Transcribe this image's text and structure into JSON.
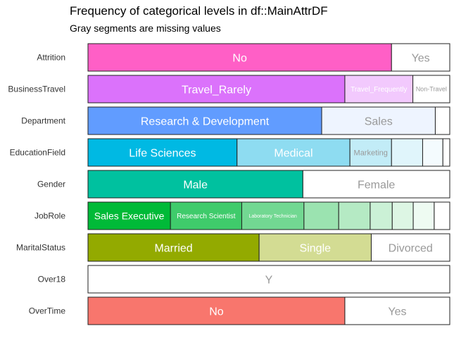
{
  "chart_data": {
    "type": "bar",
    "subtype": "stacked-horizontal-100",
    "title": "Frequency of categorical levels in df::MainAttrDF",
    "subtitle": "Gray segments are missing values",
    "xlabel": "",
    "ylabel": "",
    "xlim": [
      0,
      1
    ],
    "grid": false,
    "legend": "none",
    "series": [
      {
        "variable": "Attrition",
        "levels": [
          {
            "label": "No",
            "share": 0.839,
            "color": "#ff5fc6",
            "text_color": "#ffffff"
          },
          {
            "label": "Yes",
            "share": 0.161,
            "color": "#ffffff",
            "text_color": "#999999"
          }
        ]
      },
      {
        "variable": "BusinessTravel",
        "levels": [
          {
            "label": "Travel_Rarely",
            "share": 0.71,
            "color": "#db72fb",
            "text_color": "#ffffff"
          },
          {
            "label": "Travel_Frequently",
            "share": 0.188,
            "color": "#f2c9fd",
            "text_color": "#ffffff"
          },
          {
            "label": "Non-Travel",
            "share": 0.102,
            "color": "#ffffff",
            "text_color": "#999999"
          }
        ]
      },
      {
        "variable": "Department",
        "levels": [
          {
            "label": "Research & Development",
            "share": 0.646,
            "color": "#619cff",
            "text_color": "#ffffff"
          },
          {
            "label": "Sales",
            "share": 0.314,
            "color": "#eef4ff",
            "text_color": "#999999"
          },
          {
            "label": "",
            "share": 0.04,
            "color": "#ffffff",
            "text_color": "#999999"
          }
        ]
      },
      {
        "variable": "EducationField",
        "levels": [
          {
            "label": "Life Sciences",
            "share": 0.412,
            "color": "#00b9e3",
            "text_color": "#ffffff"
          },
          {
            "label": "Medical",
            "share": 0.312,
            "color": "#8edcf1",
            "text_color": "#ffffff"
          },
          {
            "label": "Marketing",
            "share": 0.115,
            "color": "#c2ecf7",
            "text_color": "#999999"
          },
          {
            "label": "",
            "share": 0.086,
            "color": "#e0f5fb",
            "text_color": "#999999"
          },
          {
            "label": "",
            "share": 0.056,
            "color": "#f4fbfe",
            "text_color": "#999999"
          },
          {
            "label": "",
            "share": 0.019,
            "color": "#ffffff",
            "text_color": "#999999"
          }
        ]
      },
      {
        "variable": "Gender",
        "levels": [
          {
            "label": "Male",
            "share": 0.594,
            "color": "#00c19f",
            "text_color": "#ffffff"
          },
          {
            "label": "Female",
            "share": 0.406,
            "color": "#ffffff",
            "text_color": "#999999"
          }
        ]
      },
      {
        "variable": "JobRole",
        "levels": [
          {
            "label": "Sales Executive",
            "share": 0.228,
            "color": "#00ba38",
            "text_color": "#ffffff"
          },
          {
            "label": "Research Scientist",
            "share": 0.197,
            "color": "#3fcb6b",
            "text_color": "#ffffff"
          },
          {
            "label": "Laboratory Technician",
            "share": 0.172,
            "color": "#72d892",
            "text_color": "#ffffff"
          },
          {
            "label": "",
            "share": 0.096,
            "color": "#9be3b0",
            "text_color": "#999999"
          },
          {
            "label": "",
            "share": 0.087,
            "color": "#b5eac4",
            "text_color": "#999999"
          },
          {
            "label": "",
            "share": 0.061,
            "color": "#cbf1d6",
            "text_color": "#999999"
          },
          {
            "label": "",
            "share": 0.058,
            "color": "#ddf6e4",
            "text_color": "#999999"
          },
          {
            "label": "",
            "share": 0.058,
            "color": "#eefbf2",
            "text_color": "#999999"
          },
          {
            "label": "",
            "share": 0.043,
            "color": "#ffffff",
            "text_color": "#999999"
          }
        ]
      },
      {
        "variable": "MaritalStatus",
        "levels": [
          {
            "label": "Married",
            "share": 0.473,
            "color": "#93aa00",
            "text_color": "#ffffff"
          },
          {
            "label": "Single",
            "share": 0.31,
            "color": "#d3dc93",
            "text_color": "#ffffff"
          },
          {
            "label": "Divorced",
            "share": 0.217,
            "color": "#ffffff",
            "text_color": "#999999"
          }
        ]
      },
      {
        "variable": "Over18",
        "levels": [
          {
            "label": "Y",
            "share": 1.0,
            "color": "#ffffff",
            "text_color": "#999999"
          }
        ]
      },
      {
        "variable": "OverTime",
        "levels": [
          {
            "label": "No",
            "share": 0.71,
            "color": "#f8766d",
            "text_color": "#ffffff"
          },
          {
            "label": "Yes",
            "share": 0.29,
            "color": "#ffffff",
            "text_color": "#999999"
          }
        ]
      }
    ]
  }
}
